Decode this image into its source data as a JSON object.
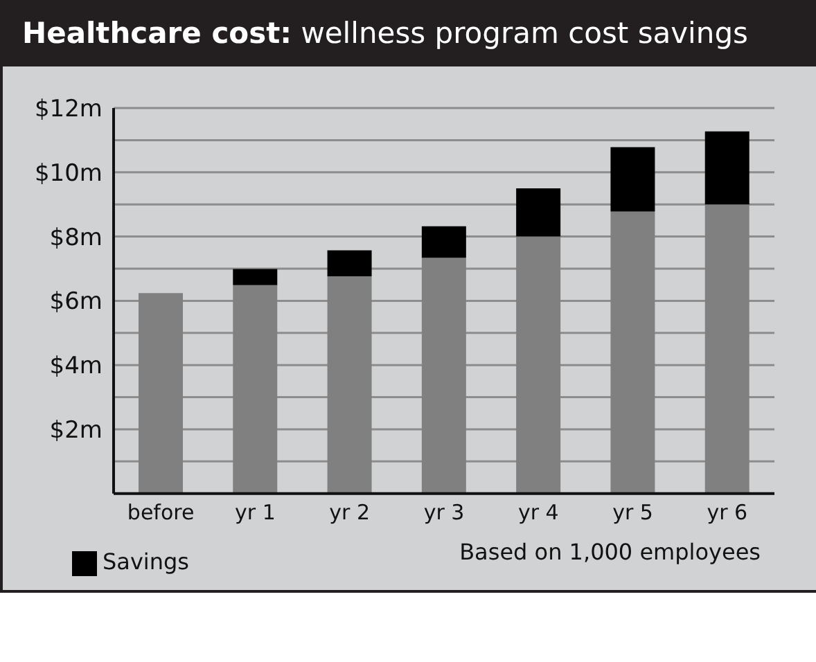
{
  "chart_data": {
    "type": "bar",
    "title": "Healthcare cost: wellness program cost savings",
    "categories": [
      "before",
      "yr 1",
      "yr 2",
      "yr 3",
      "yr 4",
      "yr 5",
      "yr 6"
    ],
    "stacked": true,
    "series": [
      {
        "color": "#808080",
        "values": [
          6.24,
          6.49,
          6.76,
          7.34,
          8.0,
          8.78,
          9.0
        ]
      },
      {
        "name": "Savings",
        "color": "#000000",
        "values": [
          0,
          0.5,
          0.81,
          0.98,
          1.5,
          2.0,
          2.27
        ]
      }
    ],
    "ylim": [
      0,
      12
    ],
    "yticks": [
      {
        "value": 0,
        "label": null
      },
      {
        "value": 1,
        "label": null
      },
      {
        "value": 2,
        "label": "$2m"
      },
      {
        "value": 3,
        "label": null
      },
      {
        "value": 4,
        "label": "$4m"
      },
      {
        "value": 5,
        "label": null
      },
      {
        "value": 6,
        "label": "$6m"
      },
      {
        "value": 7,
        "label": null
      },
      {
        "value": 8,
        "label": "$8m"
      },
      {
        "value": 9,
        "label": null
      },
      {
        "value": 10,
        "label": "$10m"
      },
      {
        "value": 11,
        "label": null
      },
      {
        "value": 12,
        "label": "$12m"
      }
    ],
    "grid": "y",
    "legend": "bottom left",
    "annotations": [
      "Based on 1,000 employees"
    ]
  }
}
